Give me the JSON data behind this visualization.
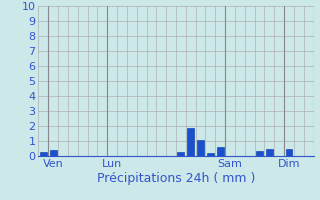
{
  "xlabel": "Précipitations 24h ( mm )",
  "ylim": [
    0,
    10
  ],
  "yticks": [
    0,
    1,
    2,
    3,
    4,
    5,
    6,
    7,
    8,
    9,
    10
  ],
  "background_color": "#cce8e8",
  "bar_color": "#1a50cc",
  "bar_edge_color": "#0033aa",
  "n_bars": 28,
  "bar_values": [
    0.3,
    0.4,
    0.0,
    0.0,
    0.0,
    0.0,
    0.0,
    0.0,
    0.0,
    0.0,
    0.0,
    0.0,
    0.0,
    0.0,
    0.3,
    1.85,
    1.1,
    0.2,
    0.6,
    0.0,
    0.0,
    0.0,
    0.35,
    0.45,
    0.0,
    0.5,
    0.0,
    0.0
  ],
  "xtick_labels": [
    "Ven",
    "Lun",
    "Sam",
    "Dim"
  ],
  "xtick_positions": [
    1,
    7,
    19,
    25
  ],
  "separator_positions": [
    0.5,
    6.5,
    18.5,
    24.5,
    27.5
  ],
  "grid_color": "#b0b0b0",
  "separator_color": "#888888",
  "xlabel_color": "#3355cc",
  "tick_color": "#3355cc",
  "xlabel_fontsize": 9,
  "ytick_fontsize": 8,
  "xtick_fontsize": 8
}
